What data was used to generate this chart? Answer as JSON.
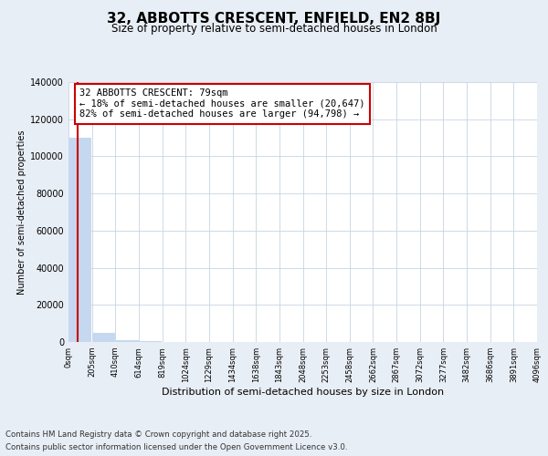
{
  "title": "32, ABBOTTS CRESCENT, ENFIELD, EN2 8BJ",
  "subtitle": "Size of property relative to semi-detached houses in London",
  "xlabel": "Distribution of semi-detached houses by size in London",
  "ylabel": "Number of semi-detached properties",
  "property_size": 79,
  "annotation_title": "32 ABBOTTS CRESCENT: 79sqm",
  "annotation_line1": "← 18% of semi-detached houses are smaller (20,647)",
  "annotation_line2": "82% of semi-detached houses are larger (94,798) →",
  "bin_edges": [
    0,
    205,
    410,
    614,
    819,
    1024,
    1229,
    1434,
    1638,
    1843,
    2048,
    2253,
    2458,
    2662,
    2867,
    3072,
    3277,
    3482,
    3686,
    3891,
    4096
  ],
  "bin_labels": [
    "0sqm",
    "205sqm",
    "410sqm",
    "614sqm",
    "819sqm",
    "1024sqm",
    "1229sqm",
    "1434sqm",
    "1638sqm",
    "1843sqm",
    "2048sqm",
    "2253sqm",
    "2458sqm",
    "2662sqm",
    "2867sqm",
    "3072sqm",
    "3277sqm",
    "3482sqm",
    "3686sqm",
    "3891sqm",
    "4096sqm"
  ],
  "bar_heights": [
    110000,
    5000,
    800,
    300,
    150,
    80,
    50,
    30,
    20,
    15,
    10,
    8,
    6,
    5,
    4,
    3,
    3,
    2,
    2,
    1
  ],
  "bar_color": "#c5d8f0",
  "vline_color": "#cc0000",
  "annotation_box_edgecolor": "#cc0000",
  "ylim": [
    0,
    140000
  ],
  "yticks": [
    0,
    20000,
    40000,
    60000,
    80000,
    100000,
    120000,
    140000
  ],
  "footer_line1": "Contains HM Land Registry data © Crown copyright and database right 2025.",
  "footer_line2": "Contains public sector information licensed under the Open Government Licence v3.0.",
  "bg_color": "#e8eef5",
  "plot_bg_color": "#ffffff"
}
